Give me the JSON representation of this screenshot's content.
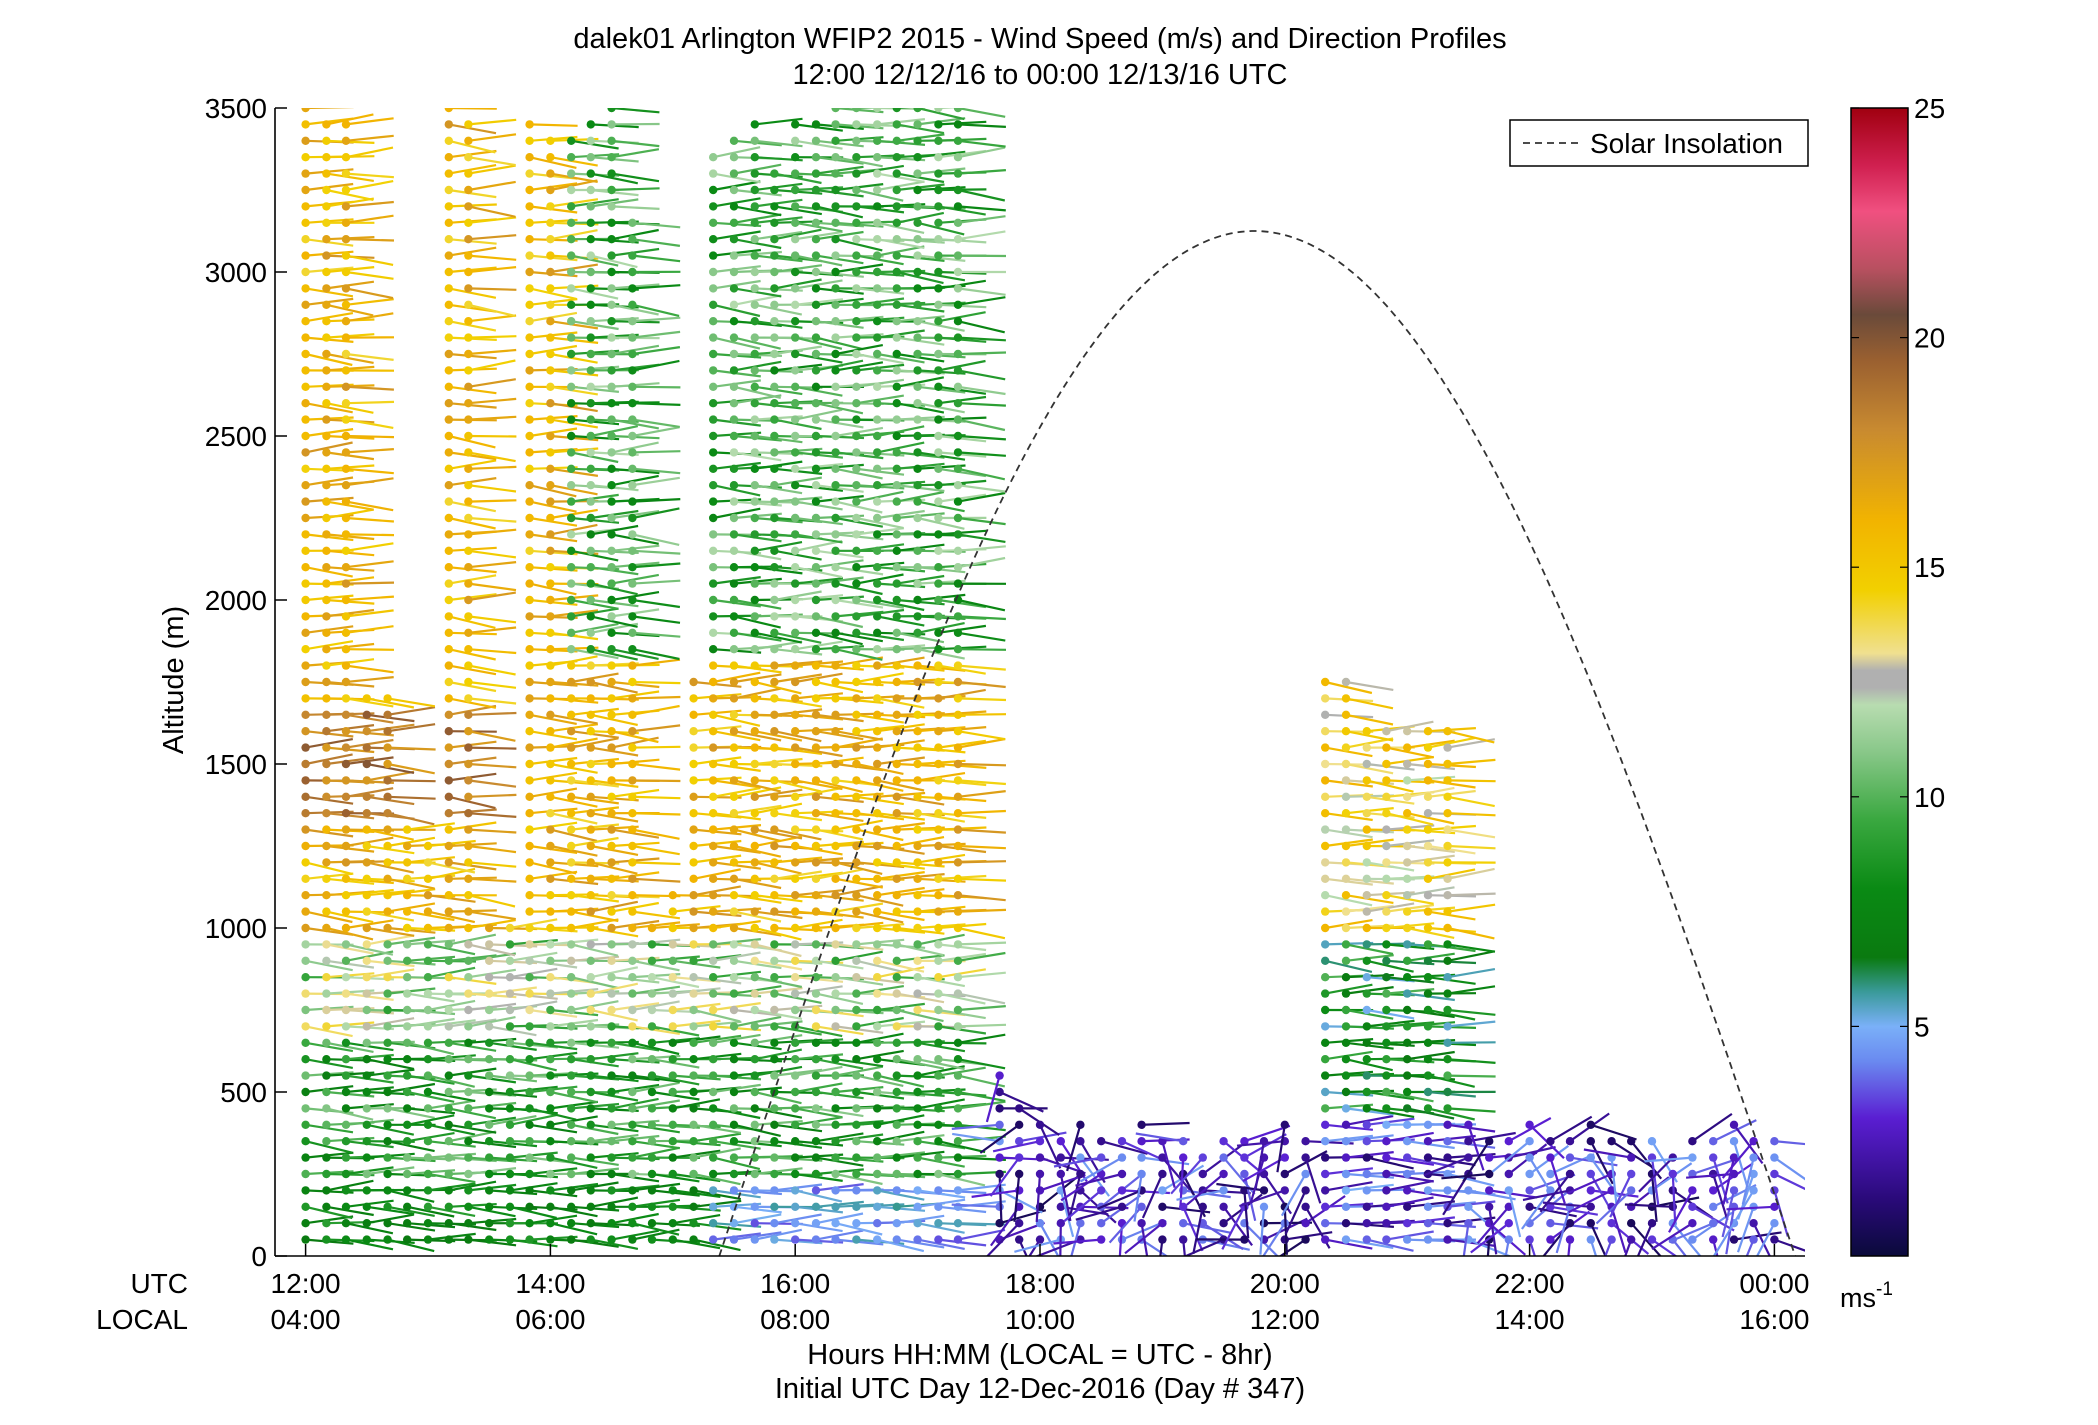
{
  "chart_data": {
    "type": "scatter",
    "title": "dalek01 Arlington WFIP2 2015 - Wind Speed (m/s) and Direction Profiles",
    "subtitle": "12:00 12/12/16 to 00:00 12/13/16  UTC",
    "xlabel": "Hours HH:MM  (LOCAL = UTC - 8hr)",
    "xlabel2": "Initial UTC Day 12-Dec-2016 (Day # 347)",
    "ylabel": "Altitude (m)",
    "xlim": [
      11.75,
      24.25
    ],
    "ylim": [
      0,
      3500
    ],
    "yticks": [
      "0",
      "500",
      "1000",
      "1500",
      "2000",
      "2500",
      "3000",
      "3500"
    ],
    "y_tick_values": [
      0,
      500,
      1000,
      1500,
      2000,
      2500,
      3000,
      3500
    ],
    "x_tick_values": [
      12,
      14,
      16,
      18,
      20,
      22,
      24
    ],
    "utc_label": "UTC",
    "local_label": "LOCAL",
    "utc_ticks": [
      "12:00",
      "14:00",
      "16:00",
      "18:00",
      "20:00",
      "22:00",
      "00:00"
    ],
    "local_ticks": [
      "04:00",
      "06:00",
      "08:00",
      "10:00",
      "12:00",
      "14:00",
      "16:00"
    ],
    "legend": {
      "entries": [
        "Solar Insolation"
      ],
      "placement": "top-right"
    },
    "colorbar": {
      "range": [
        0,
        25
      ],
      "ticks": [
        "5",
        "10",
        "15",
        "20",
        "25"
      ],
      "tick_values": [
        5,
        10,
        15,
        20,
        25
      ],
      "unit_base": "ms",
      "unit_exp": "-1"
    },
    "solar_insolation": {
      "start_hour": 15.38,
      "end_hour": 24.17,
      "peak_hour": 19.75,
      "peak_altitude": 3125
    },
    "profiles": [
      {
        "hour": 12.0,
        "top": 3500,
        "step": 50,
        "regime": "morning"
      },
      {
        "hour": 12.17,
        "top": 3450,
        "step": 50,
        "regime": "morning"
      },
      {
        "hour": 12.33,
        "top": 3450,
        "step": 50,
        "regime": "morning"
      },
      {
        "hour": 12.5,
        "top": 1700,
        "step": 50,
        "regime": "morning"
      },
      {
        "hour": 12.67,
        "top": 1700,
        "step": 50,
        "regime": "morning"
      },
      {
        "hour": 12.83,
        "top": 1300,
        "step": 50,
        "regime": "morning"
      },
      {
        "hour": 13.0,
        "top": 1250,
        "step": 50,
        "regime": "morning"
      },
      {
        "hour": 13.17,
        "top": 3500,
        "step": 50,
        "regime": "morning"
      },
      {
        "hour": 13.33,
        "top": 3450,
        "step": 50,
        "regime": "morning"
      },
      {
        "hour": 13.5,
        "top": 1000,
        "step": 50,
        "regime": "morning"
      },
      {
        "hour": 13.67,
        "top": 1000,
        "step": 50,
        "regime": "morning"
      },
      {
        "hour": 13.83,
        "top": 3450,
        "step": 50,
        "regime": "morning"
      },
      {
        "hour": 14.0,
        "top": 3400,
        "step": 50,
        "regime": "morning"
      },
      {
        "hour": 14.17,
        "top": 3400,
        "step": 50,
        "regime": "morning"
      },
      {
        "hour": 14.33,
        "top": 3450,
        "step": 50,
        "regime": "morning"
      },
      {
        "hour": 14.5,
        "top": 3500,
        "step": 50,
        "regime": "morning"
      },
      {
        "hour": 14.67,
        "top": 3150,
        "step": 50,
        "regime": "morning"
      },
      {
        "hour": 14.83,
        "top": 1000,
        "step": 50,
        "regime": "morning"
      },
      {
        "hour": 15.0,
        "top": 1100,
        "step": 50,
        "regime": "morning"
      },
      {
        "hour": 15.17,
        "top": 1750,
        "step": 50,
        "regime": "morning"
      },
      {
        "hour": 15.33,
        "top": 3350,
        "step": 50,
        "regime": "morning"
      },
      {
        "hour": 15.5,
        "top": 3400,
        "step": 50,
        "regime": "morning"
      },
      {
        "hour": 15.67,
        "top": 3450,
        "step": 50,
        "regime": "morning"
      },
      {
        "hour": 15.83,
        "top": 3300,
        "step": 50,
        "regime": "morning"
      },
      {
        "hour": 16.0,
        "top": 3450,
        "step": 50,
        "regime": "morning"
      },
      {
        "hour": 16.17,
        "top": 3450,
        "step": 50,
        "regime": "morning"
      },
      {
        "hour": 16.33,
        "top": 3500,
        "step": 50,
        "regime": "morning"
      },
      {
        "hour": 16.5,
        "top": 3500,
        "step": 50,
        "regime": "morning"
      },
      {
        "hour": 16.67,
        "top": 3500,
        "step": 50,
        "regime": "morning"
      },
      {
        "hour": 16.83,
        "top": 3500,
        "step": 50,
        "regime": "morning"
      },
      {
        "hour": 17.0,
        "top": 3500,
        "step": 50,
        "regime": "morning"
      },
      {
        "hour": 17.17,
        "top": 3500,
        "step": 50,
        "regime": "morning"
      },
      {
        "hour": 17.33,
        "top": 3500,
        "step": 50,
        "regime": "morning"
      },
      {
        "hour": 17.67,
        "top": 550,
        "step": 50,
        "regime": "midday"
      },
      {
        "hour": 17.83,
        "top": 450,
        "step": 50,
        "regime": "midday"
      },
      {
        "hour": 18.0,
        "top": 400,
        "step": 50,
        "regime": "midday"
      },
      {
        "hour": 18.17,
        "top": 350,
        "step": 50,
        "regime": "midday"
      },
      {
        "hour": 18.33,
        "top": 400,
        "step": 50,
        "regime": "midday"
      },
      {
        "hour": 18.5,
        "top": 350,
        "step": 50,
        "regime": "midday"
      },
      {
        "hour": 18.67,
        "top": 350,
        "step": 50,
        "regime": "midday"
      },
      {
        "hour": 18.83,
        "top": 400,
        "step": 50,
        "regime": "midday"
      },
      {
        "hour": 19.0,
        "top": 350,
        "step": 50,
        "regime": "midday"
      },
      {
        "hour": 19.17,
        "top": 350,
        "step": 50,
        "regime": "midday"
      },
      {
        "hour": 19.33,
        "top": 300,
        "step": 50,
        "regime": "midday"
      },
      {
        "hour": 19.5,
        "top": 350,
        "step": 50,
        "regime": "midday"
      },
      {
        "hour": 19.67,
        "top": 350,
        "step": 50,
        "regime": "midday"
      },
      {
        "hour": 19.83,
        "top": 350,
        "step": 50,
        "regime": "midday"
      },
      {
        "hour": 20.0,
        "top": 400,
        "step": 50,
        "regime": "midday"
      },
      {
        "hour": 20.17,
        "top": 350,
        "step": 50,
        "regime": "midday"
      },
      {
        "hour": 20.33,
        "top": 1750,
        "step": 50,
        "regime": "afternoon"
      },
      {
        "hour": 20.5,
        "top": 1750,
        "step": 50,
        "regime": "afternoon"
      },
      {
        "hour": 20.67,
        "top": 1600,
        "step": 50,
        "regime": "afternoon"
      },
      {
        "hour": 20.83,
        "top": 1600,
        "step": 50,
        "regime": "afternoon"
      },
      {
        "hour": 21.0,
        "top": 1600,
        "step": 50,
        "regime": "afternoon"
      },
      {
        "hour": 21.17,
        "top": 1600,
        "step": 50,
        "regime": "afternoon"
      },
      {
        "hour": 21.33,
        "top": 1600,
        "step": 50,
        "regime": "afternoon"
      },
      {
        "hour": 21.5,
        "top": 400,
        "step": 50,
        "regime": "midday"
      },
      {
        "hour": 21.67,
        "top": 350,
        "step": 50,
        "regime": "midday"
      },
      {
        "hour": 21.83,
        "top": 350,
        "step": 50,
        "regime": "midday"
      },
      {
        "hour": 22.0,
        "top": 400,
        "step": 50,
        "regime": "midday"
      },
      {
        "hour": 22.17,
        "top": 350,
        "step": 50,
        "regime": "midday"
      },
      {
        "hour": 22.33,
        "top": 350,
        "step": 50,
        "regime": "midday"
      },
      {
        "hour": 22.5,
        "top": 400,
        "step": 50,
        "regime": "midday"
      },
      {
        "hour": 22.67,
        "top": 350,
        "step": 50,
        "regime": "midday"
      },
      {
        "hour": 22.83,
        "top": 350,
        "step": 50,
        "regime": "midday"
      },
      {
        "hour": 23.0,
        "top": 350,
        "step": 50,
        "regime": "midday"
      },
      {
        "hour": 23.17,
        "top": 300,
        "step": 50,
        "regime": "midday"
      },
      {
        "hour": 23.33,
        "top": 350,
        "step": 50,
        "regime": "midday"
      },
      {
        "hour": 23.5,
        "top": 350,
        "step": 50,
        "regime": "midday"
      },
      {
        "hour": 23.67,
        "top": 400,
        "step": 50,
        "regime": "midday"
      },
      {
        "hour": 23.83,
        "top": 350,
        "step": 50,
        "regime": "midday"
      },
      {
        "hour": 24.0,
        "top": 350,
        "step": 50,
        "regime": "midday"
      }
    ]
  }
}
